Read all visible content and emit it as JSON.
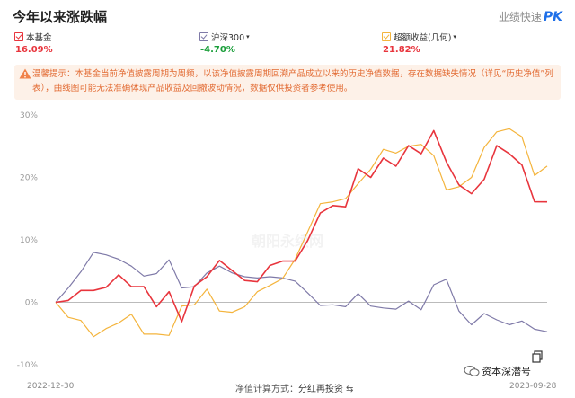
{
  "header": {
    "title": "今年以来涨跌幅",
    "pk_label": "业绩快速",
    "pk_badge": "PK"
  },
  "legend": [
    {
      "name": "本基金",
      "value": "16.09%",
      "color": "#e8353d",
      "caret": ""
    },
    {
      "name": "沪深300",
      "value": "-4.70%",
      "color": "#7f7aa8",
      "caret": "▾"
    },
    {
      "name": "超额收益(几何)",
      "value": "21.82%",
      "color": "#f4b43c",
      "caret": "▾"
    }
  ],
  "notice": {
    "text": "温馨提示：本基金当前净值披露周期为周频，以该净值披露周期回溯产品成立以来的历史净值数据，存在数据缺失情况（详见“历史净值”列表），曲线图可能无法准确体现产品收益及回撤波动情况，数据仅供投资者参考使用。"
  },
  "footer": {
    "start_date": "2022-12-30",
    "end_date": "2023-09-28",
    "method_label": "净值计算方式：",
    "method_value": "分红再投资",
    "swap_icon": "⇆"
  },
  "watermark": {
    "chart": "朝阳永续网",
    "brand": "资本深潜号"
  },
  "icons": {
    "notice": "warning-icon",
    "copy": "copy-icon",
    "swap": "swap-icon",
    "brand": "wechat-icon"
  },
  "chart_data": {
    "type": "line",
    "y_ticks": [
      "30%",
      "20%",
      "10%",
      "0%",
      "-10%"
    ],
    "ylim": [
      -10,
      30
    ],
    "x_range": [
      "2022-12-30",
      "2023-09-28"
    ],
    "series": [
      {
        "name": "本基金",
        "color": "#e8353d",
        "values": [
          0,
          0.3,
          1.9,
          1.9,
          2.4,
          4.4,
          2.5,
          2.5,
          -0.7,
          1.7,
          -3.1,
          2.6,
          4.1,
          6.7,
          5.1,
          3.5,
          3.3,
          5.9,
          6.6,
          6.6,
          9.9,
          14.3,
          15.5,
          15.3,
          21.4,
          20.0,
          23.1,
          21.8,
          25.1,
          23.8,
          27.5,
          22.5,
          18.8,
          17.4,
          19.7,
          25.1,
          23.8,
          22.0,
          16.1,
          16.09
        ]
      },
      {
        "name": "沪深300",
        "color": "#7f7aa8",
        "values": [
          0,
          2.3,
          4.9,
          8.0,
          7.6,
          6.9,
          5.8,
          4.2,
          4.6,
          6.8,
          2.3,
          2.5,
          4.7,
          5.8,
          4.7,
          4.1,
          3.9,
          4.1,
          3.9,
          3.4,
          1.5,
          -0.5,
          -0.4,
          -0.7,
          1.4,
          -0.6,
          -0.9,
          -1.1,
          0.2,
          -1.2,
          2.8,
          3.7,
          -1.4,
          -3.6,
          -1.8,
          -2.8,
          -3.6,
          -3.0,
          -4.3,
          -4.7
        ]
      },
      {
        "name": "超额收益(几何)",
        "color": "#f4b43c",
        "values": [
          0,
          -2.4,
          -2.9,
          -5.5,
          -4.2,
          -3.3,
          -1.9,
          -5.1,
          -5.1,
          -5.3,
          -0.6,
          -0.4,
          2.1,
          -1.4,
          -1.6,
          -0.7,
          1.7,
          2.7,
          3.8,
          6.9,
          11.3,
          15.8,
          16.1,
          16.6,
          19.0,
          21.3,
          24.5,
          23.9,
          25.0,
          25.3,
          23.5,
          18.0,
          18.5,
          20.0,
          24.8,
          27.3,
          27.8,
          26.5,
          20.3,
          21.82
        ]
      }
    ]
  }
}
